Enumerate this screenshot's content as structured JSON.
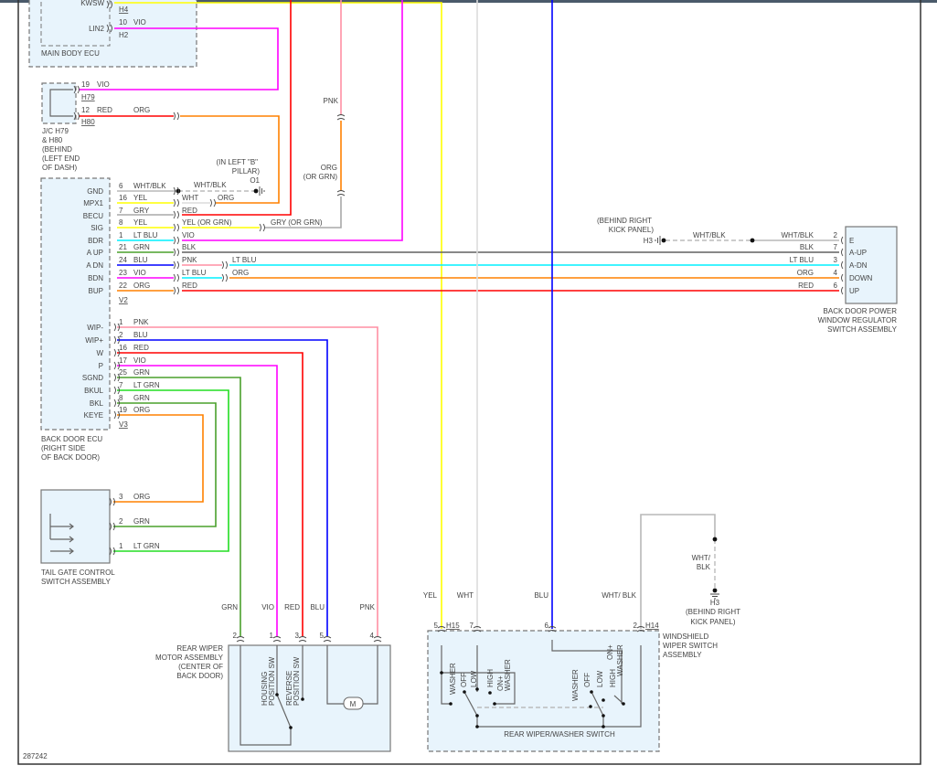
{
  "diagram_id": "287242",
  "wire_colors": {
    "VIO": "#ff00ff",
    "RED": "#ff0000",
    "ORG": "#ff8000",
    "YEL": "#ffff00",
    "PNK": "#ff8fa3",
    "WHT": "#dcdcdc",
    "GRY": "#a8a8a8",
    "BLK": "#606060",
    "LTBLU": "#00f0ff",
    "BLU": "#0000ff",
    "GRN": "#4aa02c",
    "LTGRN": "#22dd22",
    "WHTBLK": "#b8b8b8"
  },
  "main_body_ecu": {
    "name": "MAIN BODY ECU",
    "pin_kwsw": "KWSW",
    "pin_lin2": "LIN2",
    "conn_h4": "H4",
    "conn_h2": "H2",
    "lin2_pin": "10",
    "lin2_wire": "VIO"
  },
  "jc": {
    "name_lines": [
      "J/C H79",
      "& H80",
      "(BEHIND",
      "(LEFT END",
      "OF DASH)"
    ],
    "h79_pin": "19",
    "h79_wire": "VIO",
    "h79": "H79",
    "h80_pin": "12",
    "h80_wire": "RED",
    "h80": "H80",
    "h80_out_wire": "ORG"
  },
  "ground_o1": {
    "location_lines": [
      "(IN LEFT \"B\"",
      "PILLAR)"
    ],
    "id": "O1",
    "wire": "WHT/BLK"
  },
  "pillar_wires": {
    "pnk": "PNK",
    "org": "ORG",
    "org_alt": "(OR GRN)"
  },
  "back_door_ecu": {
    "name_lines": [
      "BACK DOOR ECU",
      "(RIGHT SIDE",
      "OF BACK DOOR)"
    ],
    "conn_v2": "V2",
    "conn_v3": "V3",
    "rows_v2": [
      {
        "pin_name": "GND",
        "pin": "6",
        "wire": "WHT/BLK",
        "out": ""
      },
      {
        "pin_name": "MPX1",
        "pin": "16",
        "wire": "YEL",
        "out": "WHT",
        "out2": "ORG"
      },
      {
        "pin_name": "BECU",
        "pin": "7",
        "wire": "GRY",
        "out": "RED"
      },
      {
        "pin_name": "SIG",
        "pin": "8",
        "wire": "YEL",
        "out": "YEL   (OR GRN)",
        "out2": "GRY   (OR GRN)"
      },
      {
        "pin_name": "BDR",
        "pin": "1",
        "wire": "LT BLU",
        "out": "VIO"
      },
      {
        "pin_name": "A UP",
        "pin": "21",
        "wire": "GRN",
        "out": "BLK"
      },
      {
        "pin_name": "A DN",
        "pin": "24",
        "wire": "BLU",
        "out": "PNK",
        "out2": "LT BLU"
      },
      {
        "pin_name": "BDN",
        "pin": "23",
        "wire": "VIO",
        "out": "LT BLU",
        "out2": "ORG"
      },
      {
        "pin_name": "BUP",
        "pin": "22",
        "wire": "ORG",
        "out": "RED"
      }
    ],
    "rows_v3": [
      {
        "pin_name": "WIP-",
        "pin": "1",
        "wire": "PNK"
      },
      {
        "pin_name": "WIP+",
        "pin": "2",
        "wire": "BLU"
      },
      {
        "pin_name": "W",
        "pin": "16",
        "wire": "RED"
      },
      {
        "pin_name": "P",
        "pin": "17",
        "wire": "VIO"
      },
      {
        "pin_name": "SGND",
        "pin": "25",
        "wire": "GRN"
      },
      {
        "pin_name": "BKUL",
        "pin": "7",
        "wire": "LT GRN"
      },
      {
        "pin_name": "BKL",
        "pin": "8",
        "wire": "GRN"
      },
      {
        "pin_name": "KEYE",
        "pin": "19",
        "wire": "ORG"
      }
    ]
  },
  "window_switch": {
    "name_lines": [
      "BACK DOOR POWER",
      "WINDOW REGULATOR",
      "SWITCH ASSEMBLY"
    ],
    "ground_location_lines": [
      "(BEHIND RIGHT",
      "KICK PANEL)"
    ],
    "ground_id": "H3",
    "ground_wire": "WHT/BLK",
    "pins": [
      {
        "name": "E",
        "pin": "2",
        "wire": "WHT/BLK"
      },
      {
        "name": "A-UP",
        "pin": "7",
        "wire": "BLK"
      },
      {
        "name": "A-DN",
        "pin": "3",
        "wire": "LT BLU"
      },
      {
        "name": "DOWN",
        "pin": "4",
        "wire": "ORG"
      },
      {
        "name": "UP",
        "pin": "6",
        "wire": "RED"
      }
    ]
  },
  "tailgate_switch": {
    "name_lines": [
      "TAIL GATE CONTROL",
      "SWITCH ASSEMBLY"
    ],
    "pins": [
      {
        "pin": "3",
        "wire": "ORG"
      },
      {
        "pin": "2",
        "wire": "GRN"
      },
      {
        "pin": "1",
        "wire": "LT GRN"
      }
    ]
  },
  "rear_wiper_motor": {
    "name_lines": [
      "REAR WIPER",
      "MOTOR ASSEMBLY",
      "(CENTER OF",
      "BACK DOOR)"
    ],
    "pins": [
      {
        "pin": "2",
        "wire": "GRN"
      },
      {
        "pin": "1",
        "wire": "VIO"
      },
      {
        "pin": "3",
        "wire": "RED"
      },
      {
        "pin": "5",
        "wire": "BLU"
      },
      {
        "pin": "4",
        "wire": "PNK"
      }
    ],
    "housing_sw": [
      "HOUSING",
      "POSITION SW"
    ],
    "reverse_sw": [
      "REVERSE",
      "POSITION SW"
    ],
    "motor": "M"
  },
  "windshield_switch": {
    "name_lines": [
      "WINDSHIELD",
      "WIPER SWITCH",
      "ASSEMBLY"
    ],
    "conn_h15": "H15",
    "conn_h14": "H14",
    "pins": [
      {
        "pin": "5",
        "wire": "YEL"
      },
      {
        "pin": "7",
        "wire": "WHT"
      },
      {
        "pin": "6",
        "wire": "BLU"
      },
      {
        "pin": "2",
        "wire": "WHT/ BLK"
      }
    ],
    "ground_wire_lines": [
      "WHT/",
      "BLK"
    ],
    "ground_id": "H3",
    "ground_location_lines": [
      "(BEHIND RIGHT",
      "KICK PANEL)"
    ],
    "sw1_positions": [
      "WASHER",
      "OFF",
      "LOW",
      "HIGH",
      "ON+",
      "WASHER"
    ],
    "sw2_positions": [
      "WASHER",
      "OFF",
      "LOW",
      "HIGH",
      "ON+",
      "WASHER"
    ],
    "sub_name": "REAR WIPER/WASHER SWITCH"
  }
}
